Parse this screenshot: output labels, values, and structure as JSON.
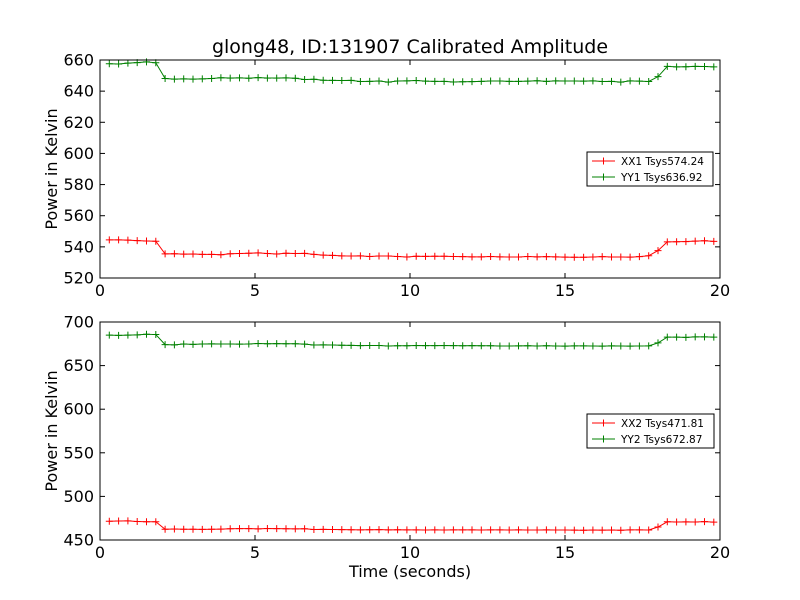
{
  "chart_data": [
    {
      "type": "line",
      "title": "glong48, ID:131907 Calibrated Amplitude",
      "xlabel": "",
      "ylabel": "Power in Kelvin",
      "xlim": [
        0,
        20
      ],
      "ylim": [
        520,
        660
      ],
      "xticks": [
        0,
        5,
        10,
        15,
        20
      ],
      "yticks": [
        520,
        540,
        560,
        580,
        600,
        620,
        640,
        660
      ],
      "grid": false,
      "legend_position": "center-right",
      "x": [
        0.3,
        0.6,
        0.9,
        1.2,
        1.5,
        1.8,
        2.1,
        2.4,
        2.7,
        3.0,
        3.3,
        3.6,
        3.9,
        4.2,
        4.5,
        4.8,
        5.1,
        5.4,
        5.7,
        6.0,
        6.3,
        6.6,
        6.9,
        7.2,
        7.5,
        7.8,
        8.1,
        8.4,
        8.7,
        9.0,
        9.3,
        9.6,
        9.9,
        10.2,
        10.5,
        10.8,
        11.1,
        11.4,
        11.7,
        12.0,
        12.3,
        12.6,
        12.9,
        13.2,
        13.5,
        13.8,
        14.1,
        14.4,
        14.7,
        15.0,
        15.3,
        15.6,
        15.9,
        16.2,
        16.5,
        16.8,
        17.1,
        17.4,
        17.7,
        18.0,
        18.3,
        18.6,
        18.9,
        19.2,
        19.5,
        19.8
      ],
      "series": [
        {
          "name": "XX1 Tsys574.24",
          "color": "#ff0000",
          "values": [
            544.5,
            544.5,
            544.3,
            544.0,
            543.8,
            543.6,
            535.5,
            535.6,
            535.3,
            535.4,
            535.2,
            535.2,
            534.9,
            535.6,
            535.7,
            535.9,
            536.1,
            535.7,
            535.4,
            535.9,
            535.7,
            535.8,
            535.2,
            534.7,
            534.5,
            534.2,
            534.1,
            534.2,
            533.8,
            534.1,
            534.1,
            533.8,
            533.5,
            534.0,
            533.9,
            534.0,
            534.0,
            533.8,
            533.7,
            533.6,
            533.6,
            533.8,
            533.6,
            533.5,
            533.5,
            533.8,
            533.6,
            533.7,
            533.6,
            533.4,
            533.3,
            533.3,
            533.5,
            533.7,
            533.5,
            533.5,
            533.4,
            533.7,
            534.3,
            537.6,
            543.2,
            543.3,
            543.4,
            543.7,
            543.9,
            543.5
          ]
        },
        {
          "name": "YY1 Tsys636.92",
          "color": "#008000",
          "values": [
            657.6,
            657.4,
            658.0,
            658.3,
            658.8,
            658.2,
            648.1,
            647.7,
            647.9,
            647.7,
            647.9,
            648.1,
            648.6,
            648.4,
            648.5,
            648.3,
            648.7,
            648.4,
            648.4,
            648.5,
            648.3,
            647.5,
            647.6,
            647.0,
            646.9,
            646.8,
            646.9,
            646.2,
            646.3,
            646.5,
            645.8,
            646.5,
            646.6,
            646.8,
            646.4,
            646.3,
            646.3,
            645.9,
            646.0,
            646.1,
            646.3,
            646.5,
            646.5,
            646.3,
            646.3,
            646.4,
            646.7,
            646.3,
            646.6,
            646.5,
            646.5,
            646.4,
            646.6,
            646.2,
            646.3,
            645.8,
            646.6,
            646.4,
            646.2,
            649.3,
            655.9,
            655.6,
            655.7,
            655.9,
            655.8,
            655.6
          ]
        }
      ]
    },
    {
      "type": "line",
      "title": "",
      "xlabel": "Time (seconds)",
      "ylabel": "Power in Kelvin",
      "xlim": [
        0,
        20
      ],
      "ylim": [
        450,
        700
      ],
      "xticks": [
        0,
        5,
        10,
        15,
        20
      ],
      "yticks": [
        450,
        500,
        550,
        600,
        650,
        700
      ],
      "grid": false,
      "legend_position": "center-right",
      "x": [
        0.3,
        0.6,
        0.9,
        1.2,
        1.5,
        1.8,
        2.1,
        2.4,
        2.7,
        3.0,
        3.3,
        3.6,
        3.9,
        4.2,
        4.5,
        4.8,
        5.1,
        5.4,
        5.7,
        6.0,
        6.3,
        6.6,
        6.9,
        7.2,
        7.5,
        7.8,
        8.1,
        8.4,
        8.7,
        9.0,
        9.3,
        9.6,
        9.9,
        10.2,
        10.5,
        10.8,
        11.1,
        11.4,
        11.7,
        12.0,
        12.3,
        12.6,
        12.9,
        13.2,
        13.5,
        13.8,
        14.1,
        14.4,
        14.7,
        15.0,
        15.3,
        15.6,
        15.9,
        16.2,
        16.5,
        16.8,
        17.1,
        17.4,
        17.7,
        18.0,
        18.3,
        18.6,
        18.9,
        19.2,
        19.5,
        19.8
      ],
      "series": [
        {
          "name": "XX2 Tsys471.81",
          "color": "#ff0000",
          "values": [
            471.5,
            471.8,
            471.9,
            471.2,
            471.0,
            470.9,
            462.3,
            462.6,
            462.3,
            462.3,
            462.2,
            462.3,
            462.5,
            462.9,
            463.0,
            463.0,
            462.8,
            463.2,
            463.0,
            462.9,
            462.8,
            462.9,
            462.1,
            462.2,
            462.0,
            461.9,
            461.7,
            461.6,
            461.7,
            461.9,
            461.6,
            461.8,
            461.6,
            461.6,
            461.5,
            461.6,
            461.5,
            461.6,
            461.6,
            461.6,
            461.4,
            461.6,
            461.6,
            461.5,
            461.6,
            461.5,
            461.4,
            461.6,
            461.4,
            461.4,
            461.3,
            461.2,
            461.4,
            461.3,
            461.5,
            461.2,
            461.6,
            461.6,
            461.5,
            464.9,
            470.9,
            470.6,
            470.8,
            470.7,
            471.1,
            470.5
          ]
        },
        {
          "name": "YY2 Tsys672.87",
          "color": "#008000",
          "values": [
            684.9,
            684.6,
            685.0,
            685.2,
            685.9,
            685.6,
            674.1,
            673.8,
            674.7,
            674.3,
            674.7,
            674.9,
            674.8,
            674.7,
            674.6,
            674.8,
            675.3,
            675.0,
            675.2,
            675.1,
            675.1,
            674.6,
            673.6,
            673.8,
            673.6,
            673.4,
            673.2,
            672.9,
            673.1,
            673.0,
            672.5,
            672.7,
            672.8,
            673.0,
            672.9,
            672.9,
            673.1,
            672.9,
            672.7,
            672.9,
            672.8,
            672.7,
            672.5,
            672.5,
            672.6,
            672.7,
            672.5,
            672.7,
            672.5,
            672.3,
            672.6,
            672.6,
            672.5,
            672.4,
            672.6,
            672.5,
            672.3,
            672.5,
            672.6,
            676.0,
            682.7,
            682.7,
            682.4,
            682.9,
            682.9,
            682.6
          ]
        }
      ]
    }
  ]
}
